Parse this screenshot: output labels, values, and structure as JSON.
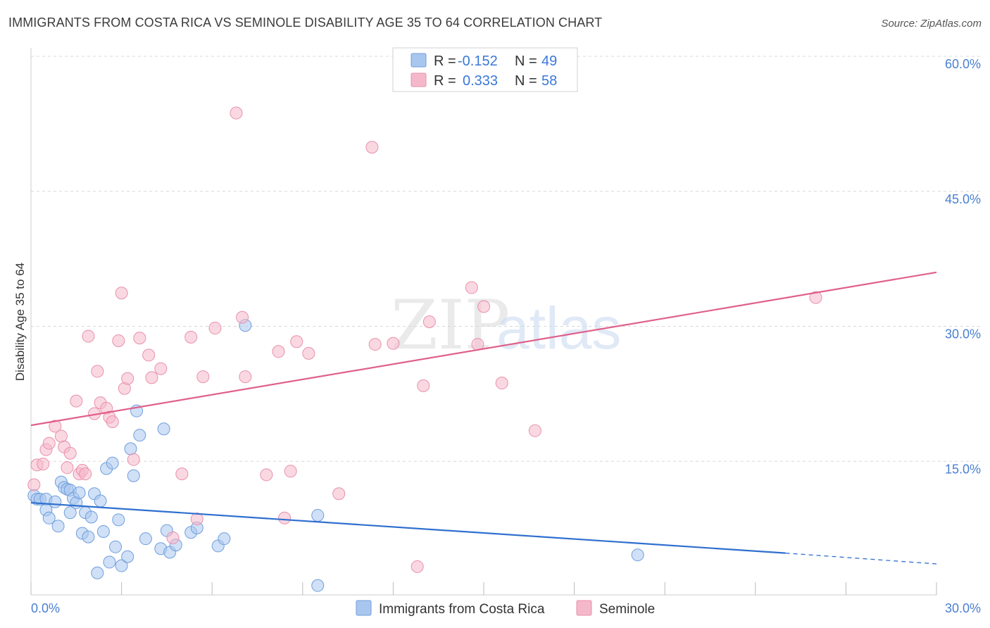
{
  "title": "IMMIGRANTS FROM COSTA RICA VS SEMINOLE DISABILITY AGE 35 TO 64 CORRELATION CHART",
  "source": "Source: ZipAtlas.com",
  "watermark": {
    "zip": "ZIP",
    "atlas": "atlas"
  },
  "colors": {
    "blue_fill": "#a9c6ee",
    "blue_stroke": "#6f9fdc",
    "blue_line": "#2f6fcf",
    "pink_fill": "#f5b8cb",
    "pink_stroke": "#e890ad",
    "pink_line": "#e0608a",
    "grid": "#d8d8d8",
    "axis_text": "#4a7fd0"
  },
  "legend": {
    "rows": [
      {
        "r_label": "R =",
        "r_value": "-0.152",
        "n_label": "N =",
        "n_value": "49",
        "series": "blue"
      },
      {
        "r_label": "R =",
        "r_value": "0.333",
        "n_label": "N =",
        "n_value": "58",
        "series": "pink"
      }
    ]
  },
  "chart_data": {
    "type": "scatter",
    "title": "IMMIGRANTS FROM COSTA RICA VS SEMINOLE DISABILITY AGE 35 TO 64 CORRELATION CHART",
    "xlabel": "",
    "ylabel": "Disability Age 35 to 64",
    "xlim": [
      0,
      30
    ],
    "ylim": [
      0,
      60
    ],
    "x_ticks": [
      "0.0%",
      "30.0%"
    ],
    "y_ticks": [
      {
        "value": 15,
        "label": "15.0%"
      },
      {
        "value": 30,
        "label": "30.0%"
      },
      {
        "value": 45,
        "label": "45.0%"
      },
      {
        "value": 60,
        "label": "60.0%"
      }
    ],
    "series": [
      {
        "name": "Immigrants from Costa Rica",
        "color": "blue",
        "r": -0.152,
        "n": 49,
        "trend": {
          "x0": 0,
          "y0": 10.4,
          "x1": 25.0,
          "y1": 4.8,
          "dash_to_x": 30,
          "dash_to_y": 3.6
        },
        "points": [
          [
            0.1,
            11.2
          ],
          [
            0.2,
            10.8
          ],
          [
            0.3,
            10.8
          ],
          [
            0.5,
            10.8
          ],
          [
            0.5,
            9.6
          ],
          [
            0.6,
            8.7
          ],
          [
            0.8,
            10.5
          ],
          [
            0.9,
            7.8
          ],
          [
            1.0,
            12.7
          ],
          [
            1.1,
            12.1
          ],
          [
            1.2,
            11.9
          ],
          [
            1.3,
            11.8
          ],
          [
            1.3,
            9.3
          ],
          [
            1.4,
            10.9
          ],
          [
            1.5,
            10.4
          ],
          [
            1.6,
            11.5
          ],
          [
            1.7,
            7.0
          ],
          [
            1.8,
            9.3
          ],
          [
            1.9,
            6.6
          ],
          [
            2.0,
            8.8
          ],
          [
            2.1,
            11.4
          ],
          [
            2.2,
            2.6
          ],
          [
            2.3,
            10.6
          ],
          [
            2.4,
            7.2
          ],
          [
            2.5,
            14.2
          ],
          [
            2.6,
            3.8
          ],
          [
            2.7,
            14.8
          ],
          [
            2.8,
            5.5
          ],
          [
            2.9,
            8.5
          ],
          [
            3.0,
            3.4
          ],
          [
            3.2,
            4.4
          ],
          [
            3.3,
            16.4
          ],
          [
            3.4,
            13.4
          ],
          [
            3.5,
            20.6
          ],
          [
            3.6,
            17.9
          ],
          [
            3.8,
            6.4
          ],
          [
            4.3,
            5.3
          ],
          [
            4.4,
            18.6
          ],
          [
            4.5,
            7.3
          ],
          [
            4.6,
            4.9
          ],
          [
            4.8,
            5.7
          ],
          [
            5.3,
            7.1
          ],
          [
            5.5,
            7.6
          ],
          [
            6.2,
            5.6
          ],
          [
            6.4,
            6.4
          ],
          [
            7.1,
            30.1
          ],
          [
            9.5,
            9.0
          ],
          [
            9.5,
            1.2
          ],
          [
            20.1,
            4.6
          ]
        ]
      },
      {
        "name": "Seminole",
        "color": "pink",
        "r": 0.333,
        "n": 58,
        "trend": {
          "x0": 0,
          "y0": 19.0,
          "x1": 30,
          "y1": 36.0
        },
        "points": [
          [
            0.1,
            12.4
          ],
          [
            0.2,
            14.6
          ],
          [
            0.4,
            14.7
          ],
          [
            0.5,
            16.3
          ],
          [
            0.6,
            17.0
          ],
          [
            0.8,
            18.9
          ],
          [
            1.0,
            17.8
          ],
          [
            1.1,
            16.6
          ],
          [
            1.2,
            14.3
          ],
          [
            1.3,
            15.9
          ],
          [
            1.5,
            21.7
          ],
          [
            1.6,
            13.6
          ],
          [
            1.7,
            14.0
          ],
          [
            1.8,
            13.6
          ],
          [
            1.9,
            28.9
          ],
          [
            2.1,
            20.3
          ],
          [
            2.2,
            25.0
          ],
          [
            2.3,
            21.5
          ],
          [
            2.5,
            20.9
          ],
          [
            2.6,
            19.9
          ],
          [
            2.7,
            19.4
          ],
          [
            2.9,
            28.4
          ],
          [
            3.0,
            33.7
          ],
          [
            3.1,
            23.1
          ],
          [
            3.2,
            24.2
          ],
          [
            3.4,
            15.2
          ],
          [
            3.6,
            28.7
          ],
          [
            3.9,
            26.8
          ],
          [
            4.0,
            24.3
          ],
          [
            4.3,
            25.3
          ],
          [
            4.7,
            6.5
          ],
          [
            5.0,
            13.6
          ],
          [
            5.3,
            28.8
          ],
          [
            5.5,
            8.6
          ],
          [
            5.7,
            24.4
          ],
          [
            6.1,
            29.8
          ],
          [
            7.0,
            31.0
          ],
          [
            7.1,
            24.4
          ],
          [
            6.8,
            53.7
          ],
          [
            7.8,
            13.5
          ],
          [
            8.2,
            27.2
          ],
          [
            8.4,
            8.7
          ],
          [
            8.6,
            13.9
          ],
          [
            8.8,
            28.3
          ],
          [
            9.2,
            27.0
          ],
          [
            10.2,
            11.4
          ],
          [
            11.3,
            49.9
          ],
          [
            11.4,
            28.0
          ],
          [
            12.0,
            28.1
          ],
          [
            12.8,
            3.3
          ],
          [
            13.0,
            23.4
          ],
          [
            13.2,
            30.5
          ],
          [
            14.6,
            34.3
          ],
          [
            14.8,
            28.0
          ],
          [
            15.0,
            32.2
          ],
          [
            15.6,
            23.7
          ],
          [
            16.7,
            18.4
          ],
          [
            26.0,
            33.2
          ]
        ]
      }
    ]
  }
}
